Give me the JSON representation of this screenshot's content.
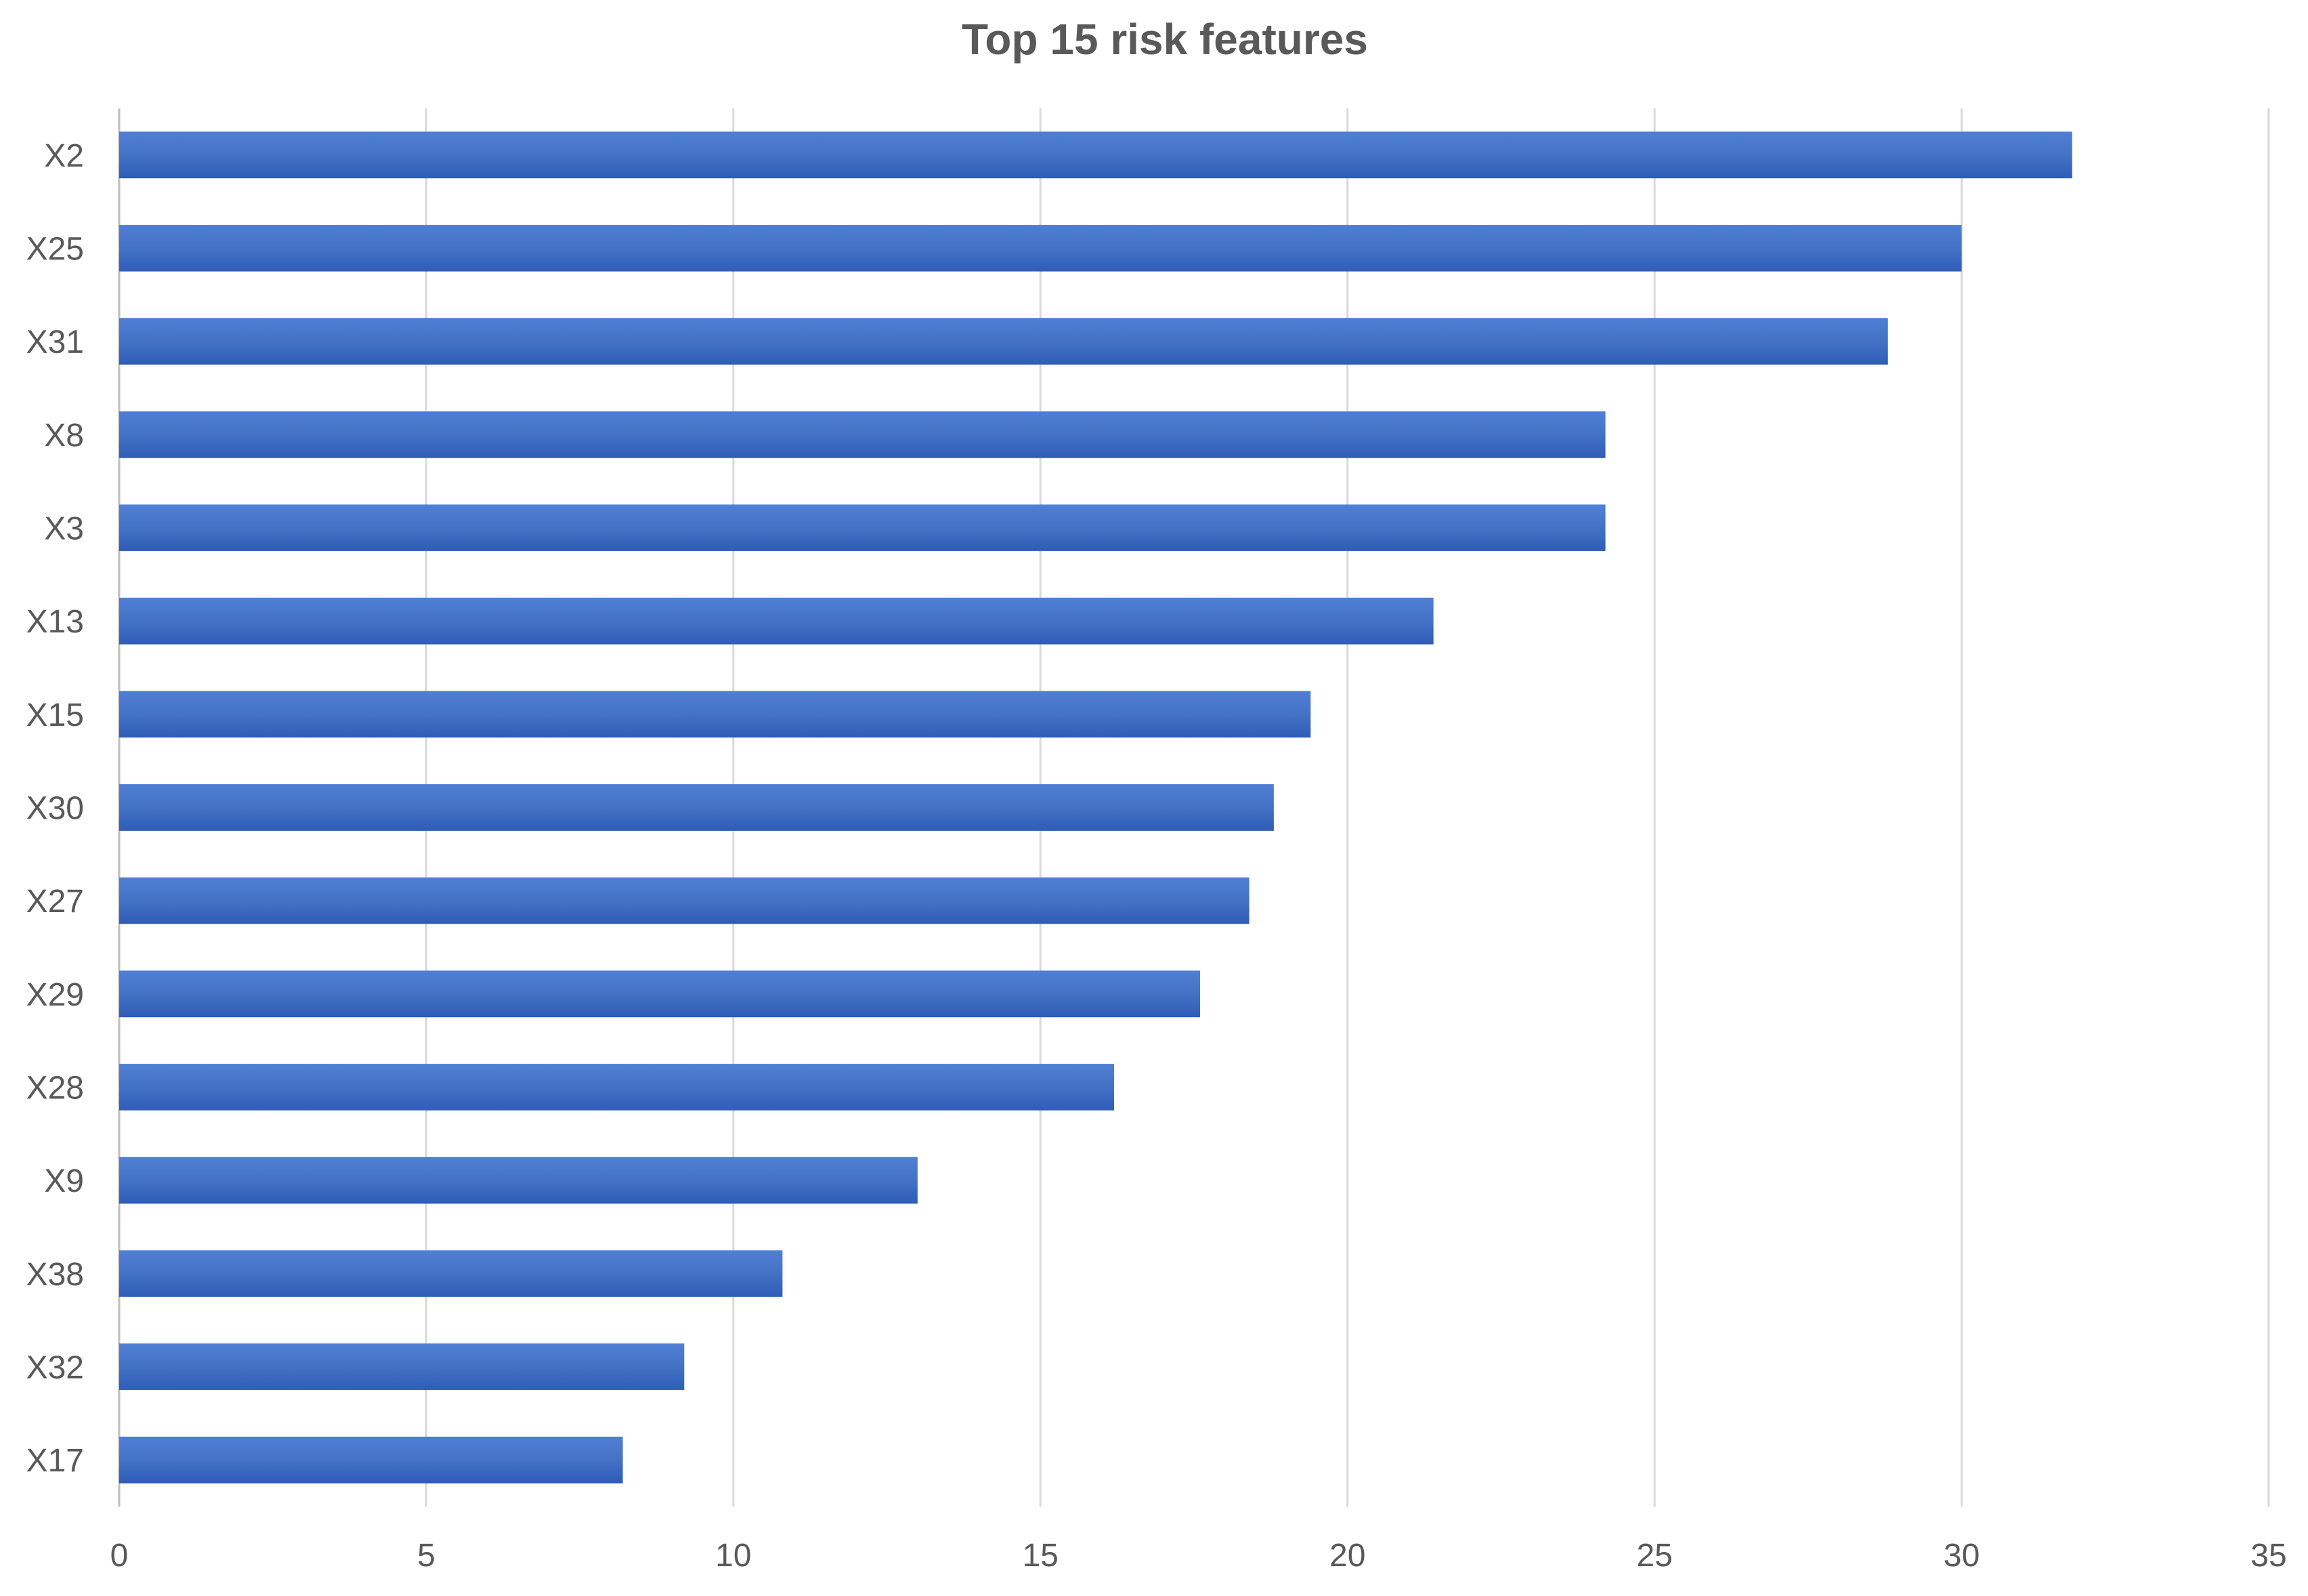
{
  "chart_data": {
    "type": "bar",
    "orientation": "horizontal",
    "title": "Top 15 risk features",
    "xlabel": "",
    "ylabel": "",
    "categories": [
      "X2",
      "X25",
      "X31",
      "X8",
      "X3",
      "X13",
      "X15",
      "X30",
      "X27",
      "X29",
      "X28",
      "X9",
      "X38",
      "X32",
      "X17"
    ],
    "values": [
      31.8,
      30.0,
      28.8,
      24.2,
      24.2,
      21.4,
      19.4,
      18.8,
      18.4,
      17.6,
      16.2,
      13.0,
      10.8,
      9.2,
      8.2
    ],
    "xlim": [
      0,
      35
    ],
    "xticks": [
      0,
      5,
      10,
      15,
      20,
      25,
      30,
      35
    ],
    "grid": "vertical",
    "legend": "none",
    "colors": {
      "bar": "#4472c4",
      "bar_light": "#4f7fd6",
      "bar_dark": "#2f5cb8",
      "grid": "#d9d9d9",
      "text": "#595959"
    }
  }
}
